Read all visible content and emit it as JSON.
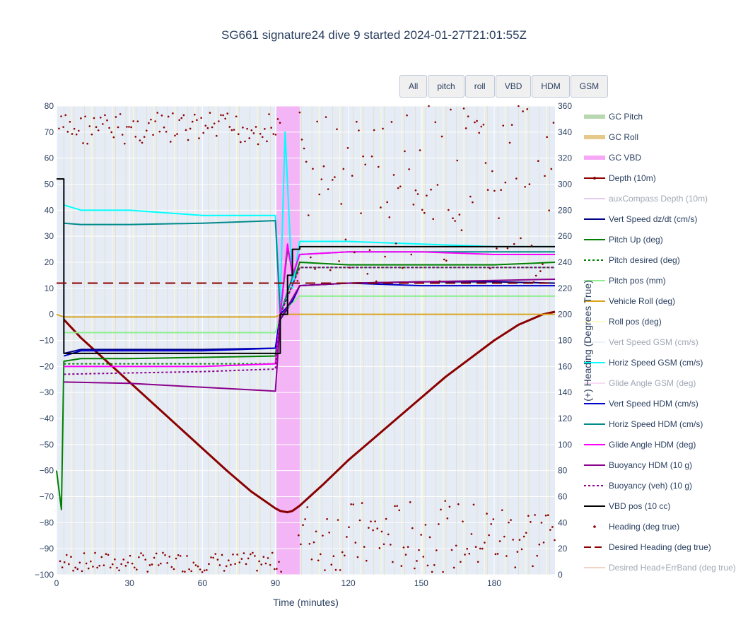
{
  "title": "SG661 signature24 dive 9 started 2024-01-27T21:01:55Z",
  "buttons": [
    "All",
    "pitch",
    "roll",
    "VBD",
    "HDM",
    "GSM"
  ],
  "chart_data": {
    "type": "line",
    "xlabel": "Time (minutes)",
    "ylabel": "",
    "y2label": "(+) Heading (Degrees True)",
    "xlim": [
      0,
      205
    ],
    "ylim": [
      -100,
      80
    ],
    "y2lim": [
      0,
      360
    ],
    "x_ticks": [
      0,
      30,
      60,
      90,
      120,
      150,
      180
    ],
    "y_ticks": [
      -100,
      -90,
      -80,
      -70,
      -60,
      -50,
      -40,
      -30,
      -20,
      -10,
      0,
      10,
      20,
      30,
      40,
      50,
      60,
      70,
      80
    ],
    "y2_ticks": [
      0,
      20,
      40,
      60,
      80,
      100,
      120,
      140,
      160,
      180,
      200,
      220,
      240,
      260,
      280,
      300,
      320,
      340,
      360
    ],
    "grid": true,
    "legend": "right",
    "vbd_band": [
      90.5,
      100
    ],
    "series": [
      {
        "name": "GC Pitch",
        "color": "#b7d8b0",
        "style": "band",
        "visible": true
      },
      {
        "name": "GC Roll",
        "color": "#e6c98a",
        "style": "band",
        "visible": true
      },
      {
        "name": "GC VBD",
        "color": "#f6a8f6",
        "style": "band",
        "visible": true
      },
      {
        "name": "Depth (10m)",
        "color": "#8b0000",
        "style": "line-marker",
        "visible": true,
        "x": [
          3,
          10,
          20,
          30,
          40,
          50,
          60,
          70,
          80,
          90,
          92,
          95,
          97,
          100,
          110,
          120,
          130,
          140,
          150,
          160,
          170,
          180,
          190,
          200,
          205
        ],
        "y": [
          -2,
          -9,
          -17.5,
          -26,
          -34.5,
          -43,
          -51.5,
          -60,
          -68,
          -74.5,
          -75.5,
          -76,
          -75.5,
          -73.5,
          -65,
          -56,
          -48,
          -40,
          -32,
          -24,
          -17,
          -10,
          -4,
          0,
          1
        ]
      },
      {
        "name": "auxCompass Depth (10m)",
        "color": "#c69ae6",
        "style": "line",
        "visible": false
      },
      {
        "name": "Vert Speed dz/dt (cm/s)",
        "color": "#00008b",
        "style": "line",
        "visible": true,
        "x": [
          3,
          10,
          30,
          60,
          90,
          92,
          97,
          100,
          120,
          150,
          180,
          205
        ],
        "y": [
          -15,
          -13.5,
          -13.5,
          -13.5,
          -13,
          -2,
          5,
          11,
          12,
          12.5,
          12.5,
          12
        ]
      },
      {
        "name": "Pitch Up (deg)",
        "color": "#008000",
        "style": "line",
        "visible": true,
        "x": [
          0,
          2,
          3,
          10,
          30,
          60,
          90,
          92,
          95,
          98,
          100,
          120,
          150,
          180,
          205
        ],
        "y": [
          -60,
          -75,
          -18,
          -17,
          -17,
          -16.5,
          -16,
          0,
          25,
          14,
          20,
          19,
          19,
          19,
          20
        ]
      },
      {
        "name": "Pitch desired (deg)",
        "color": "#008000",
        "style": "dot",
        "visible": true,
        "x": [
          3,
          90,
          92,
          100,
          205
        ],
        "y": [
          -19,
          -19,
          0,
          18,
          18
        ]
      },
      {
        "name": "Pitch pos (mm)",
        "color": "#90ee90",
        "style": "line",
        "visible": true,
        "x": [
          3,
          90,
          92,
          100,
          205
        ],
        "y": [
          -7,
          -7,
          0,
          7,
          7
        ]
      },
      {
        "name": "Vehicle Roll (deg)",
        "color": "#daa520",
        "style": "line",
        "visible": true,
        "x": [
          0,
          3,
          30,
          60,
          90,
          92,
          100,
          150,
          205
        ],
        "y": [
          0,
          -1,
          -1,
          -1,
          -1,
          0,
          0,
          0,
          0
        ]
      },
      {
        "name": "Roll pos (deg)",
        "color": "#fffacd",
        "style": "line",
        "visible": true
      },
      {
        "name": "Vert Speed GSM (cm/s)",
        "color": "#d6e6f8",
        "style": "line",
        "visible": false
      },
      {
        "name": "Horiz Speed GSM (cm/s)",
        "color": "#00ffff",
        "style": "line",
        "visible": true,
        "x": [
          3,
          10,
          30,
          60,
          90,
          92,
          94,
          97,
          100,
          120,
          150,
          180,
          205
        ],
        "y": [
          42,
          40,
          40,
          38,
          38,
          5,
          70,
          10,
          28,
          28,
          27,
          26,
          26
        ]
      },
      {
        "name": "Glide Angle GSM (deg)",
        "color": "#f3b8f0",
        "style": "line",
        "visible": false
      },
      {
        "name": "Vert Speed HDM (cm/s)",
        "color": "#0000cd",
        "style": "line",
        "visible": true,
        "x": [
          3,
          10,
          30,
          60,
          90,
          92,
          97,
          100,
          120,
          150,
          180,
          205
        ],
        "y": [
          -16,
          -14,
          -14,
          -14,
          -13,
          0,
          5,
          11,
          12,
          11,
          11,
          11
        ]
      },
      {
        "name": "Horiz Speed HDM (cm/s)",
        "color": "#008b8b",
        "style": "line",
        "visible": true,
        "x": [
          3,
          10,
          30,
          60,
          90,
          92,
          100,
          120,
          150,
          180,
          205
        ],
        "y": [
          35,
          34.5,
          34.5,
          35,
          36,
          0,
          23,
          24,
          24,
          24,
          24
        ]
      },
      {
        "name": "Glide Angle HDM (deg)",
        "color": "#ff00ff",
        "style": "line",
        "visible": true,
        "x": [
          3,
          10,
          30,
          60,
          90,
          92,
          95,
          97,
          100,
          120,
          150,
          180,
          205
        ],
        "y": [
          -20,
          -20,
          -20,
          -20,
          -19,
          0,
          27,
          15,
          23,
          24,
          24,
          23,
          23
        ]
      },
      {
        "name": "Buoyancy HDM (10 g)",
        "color": "#8b008b",
        "style": "line",
        "visible": true,
        "x": [
          3,
          30,
          60,
          90,
          92,
          100,
          120,
          150,
          180,
          205
        ],
        "y": [
          -26,
          -26.5,
          -28,
          -29.5,
          -2,
          11,
          12,
          12.5,
          13,
          13.5
        ]
      },
      {
        "name": "Buoyancy (veh) (10 g)",
        "color": "#8b008b",
        "style": "dot",
        "visible": true,
        "x": [
          3,
          30,
          60,
          90,
          92,
          100,
          120,
          150,
          180,
          205
        ],
        "y": [
          -23,
          -22.5,
          -22,
          -21,
          0,
          18,
          18,
          18,
          18,
          18
        ]
      },
      {
        "name": "VBD pos (10 cc)",
        "color": "#000000",
        "style": "step",
        "visible": true,
        "x": [
          0,
          3,
          3,
          92,
          92,
          95,
          95,
          97,
          97,
          100,
          100,
          205
        ],
        "y": [
          52,
          52,
          -15,
          -15,
          0,
          0,
          15,
          15,
          25,
          25,
          26,
          26
        ]
      },
      {
        "name": "Heading (deg true)",
        "color": "#8b0000",
        "style": "marker",
        "visible": true,
        "y_axis": "y2"
      },
      {
        "name": "Desired Heading (deg true)",
        "color": "#8b0000",
        "style": "dash",
        "visible": true,
        "y_axis": "y2",
        "x": [
          0,
          205
        ],
        "y": [
          224,
          224
        ]
      },
      {
        "name": "Desired Head+ErrBand (deg true)",
        "color": "#e9a98f",
        "style": "line",
        "visible": false,
        "y_axis": "y2"
      }
    ]
  }
}
